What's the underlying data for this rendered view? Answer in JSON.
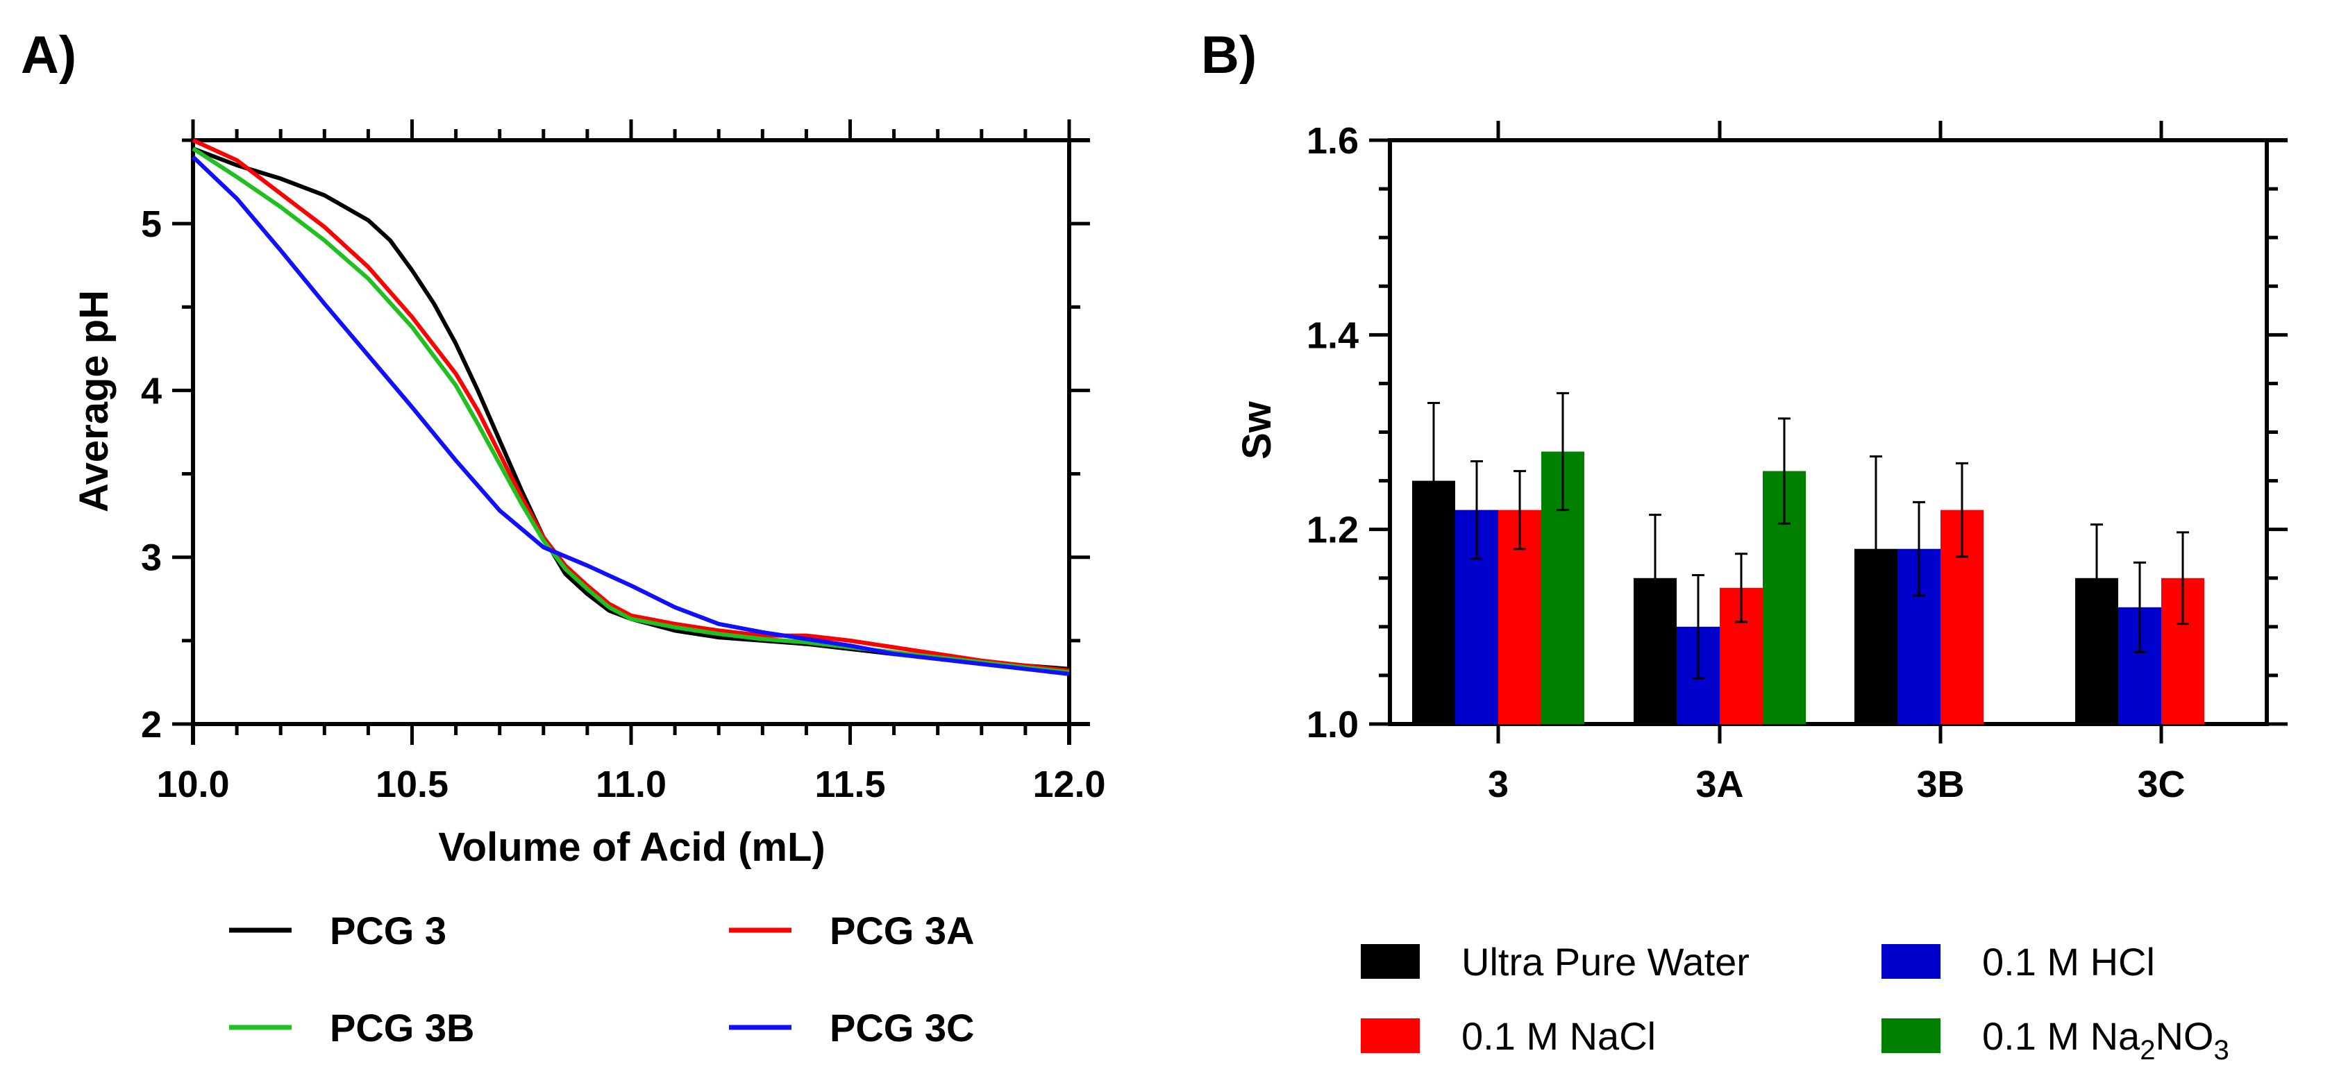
{
  "chart_data": [
    {
      "panel": "A)",
      "type": "line",
      "xlabel": "Volume of Acid  (mL)",
      "ylabel": "Average pH",
      "xlim": [
        10.0,
        12.0
      ],
      "ylim": [
        2,
        5.5
      ],
      "xticks": [
        "10.0",
        "10.5",
        "11.0",
        "11.5",
        "12.0"
      ],
      "yticks": [
        "2",
        "3",
        "4",
        "5"
      ],
      "series": [
        {
          "name": "PCG 3",
          "color": "#000000",
          "x": [
            10.0,
            10.1,
            10.2,
            10.3,
            10.4,
            10.45,
            10.5,
            10.55,
            10.6,
            10.65,
            10.7,
            10.75,
            10.8,
            10.85,
            10.9,
            10.95,
            11.0,
            11.1,
            11.2,
            11.3,
            11.4,
            11.5,
            11.6,
            11.7,
            11.8,
            11.9,
            12.0
          ],
          "y": [
            5.45,
            5.35,
            5.27,
            5.17,
            5.02,
            4.9,
            4.72,
            4.52,
            4.28,
            4.0,
            3.7,
            3.4,
            3.12,
            2.9,
            2.78,
            2.68,
            2.63,
            2.56,
            2.52,
            2.5,
            2.48,
            2.45,
            2.42,
            2.4,
            2.37,
            2.35,
            2.33
          ]
        },
        {
          "name": "PCG 3A",
          "color": "#ff0000",
          "x": [
            10.0,
            10.1,
            10.2,
            10.3,
            10.4,
            10.5,
            10.6,
            10.65,
            10.7,
            10.75,
            10.8,
            10.85,
            10.9,
            10.95,
            11.0,
            11.1,
            11.2,
            11.3,
            11.4,
            11.5,
            11.6,
            11.7,
            11.8,
            11.9,
            12.0
          ],
          "y": [
            5.5,
            5.38,
            5.18,
            4.98,
            4.74,
            4.44,
            4.1,
            3.88,
            3.62,
            3.36,
            3.12,
            2.95,
            2.83,
            2.72,
            2.65,
            2.6,
            2.56,
            2.53,
            2.53,
            2.5,
            2.46,
            2.42,
            2.38,
            2.35,
            2.32
          ]
        },
        {
          "name": "PCG 3B",
          "color": "#20c020",
          "x": [
            10.0,
            10.1,
            10.2,
            10.3,
            10.4,
            10.5,
            10.6,
            10.65,
            10.7,
            10.75,
            10.8,
            10.85,
            10.9,
            10.95,
            11.0,
            11.1,
            11.2,
            11.3,
            11.4,
            11.5,
            11.6,
            11.7,
            11.8,
            11.9,
            12.0
          ],
          "y": [
            5.45,
            5.28,
            5.1,
            4.9,
            4.67,
            4.38,
            4.03,
            3.8,
            3.56,
            3.32,
            3.1,
            2.93,
            2.81,
            2.7,
            2.63,
            2.58,
            2.54,
            2.51,
            2.49,
            2.46,
            2.43,
            2.4,
            2.37,
            2.34,
            2.31
          ]
        },
        {
          "name": "PCG 3C",
          "color": "#1010ff",
          "x": [
            10.0,
            10.1,
            10.2,
            10.3,
            10.4,
            10.5,
            10.6,
            10.7,
            10.8,
            10.9,
            11.0,
            11.1,
            11.2,
            11.3,
            11.4,
            11.5,
            11.6,
            11.7,
            11.8,
            11.9,
            12.0
          ],
          "y": [
            5.4,
            5.15,
            4.84,
            4.52,
            4.21,
            3.9,
            3.58,
            3.28,
            3.06,
            2.95,
            2.83,
            2.7,
            2.6,
            2.55,
            2.51,
            2.47,
            2.42,
            2.39,
            2.36,
            2.33,
            2.3
          ]
        }
      ],
      "legend": [
        "PCG 3",
        "PCG 3A",
        "PCG 3B",
        "PCG 3C"
      ],
      "legend_position": "below"
    },
    {
      "panel": "B)",
      "type": "bar",
      "ylabel": "Sw",
      "ylim": [
        1.0,
        1.6
      ],
      "yticks": [
        "1.0",
        "1.2",
        "1.4",
        "1.6"
      ],
      "categories": [
        "3",
        "3A",
        "3B",
        "3C"
      ],
      "series": [
        {
          "name": "Ultra Pure Water",
          "color": "#000000",
          "values": [
            1.25,
            1.15,
            1.18,
            1.15
          ],
          "errors": [
            0.08,
            0.065,
            0.095,
            0.055
          ]
        },
        {
          "name": "0.1 M HCl",
          "color": "#0000cc",
          "values": [
            1.22,
            1.1,
            1.18,
            1.12
          ],
          "errors": [
            0.05,
            0.053,
            0.048,
            0.046
          ]
        },
        {
          "name": "0.1 M NaCl",
          "color": "#ff0000",
          "values": [
            1.22,
            1.14,
            1.22,
            1.15
          ],
          "errors": [
            0.04,
            0.035,
            0.048,
            0.047
          ]
        },
        {
          "name": "0.1 M Na",
          "sub": "2",
          "tail": "NO",
          "sub2": "3",
          "color": "#008000",
          "values": [
            1.28,
            1.26,
            null,
            null
          ],
          "errors": [
            0.06,
            0.054,
            null,
            null
          ]
        }
      ],
      "legend_position": "bottom"
    }
  ]
}
